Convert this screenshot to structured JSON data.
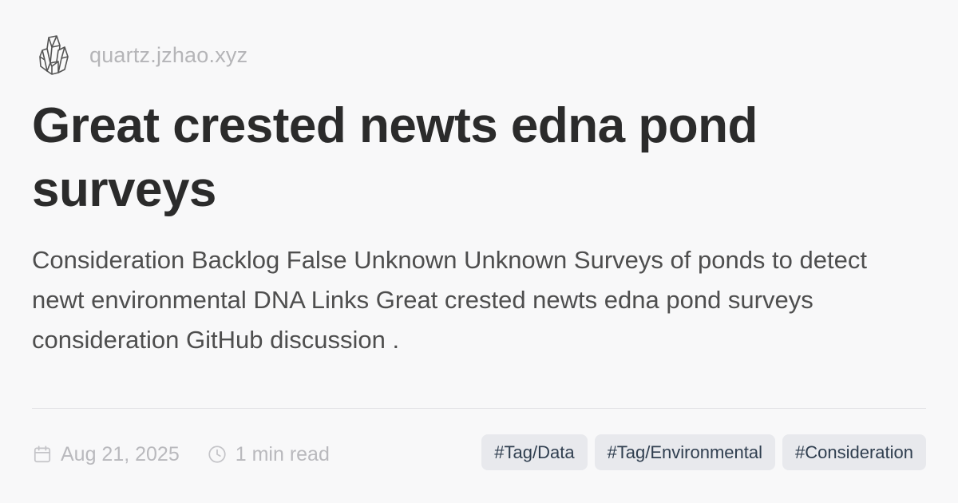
{
  "header": {
    "site": "quartz.jzhao.xyz",
    "logo_icon": "quartz-crystal-logo"
  },
  "article": {
    "title": "Great crested newts edna pond surveys",
    "description": "Consideration Backlog False Unknown Unknown Surveys of ponds to detect newt environmental DNA Links Great crested newts edna pond surveys consideration GitHub discussion ."
  },
  "meta": {
    "date": "Aug 21, 2025",
    "date_icon": "calendar-icon",
    "read_time": "1 min read",
    "read_time_icon": "clock-icon"
  },
  "tags": [
    {
      "label": "#Tag/Data"
    },
    {
      "label": "#Tag/Environmental"
    },
    {
      "label": "#Consideration"
    }
  ],
  "colors": {
    "background": "#f8f8f9",
    "title": "#2b2b2b",
    "muted": "#b5b5b8",
    "tag_bg": "#e8e9ed",
    "tag_text": "#2f3e4f"
  }
}
